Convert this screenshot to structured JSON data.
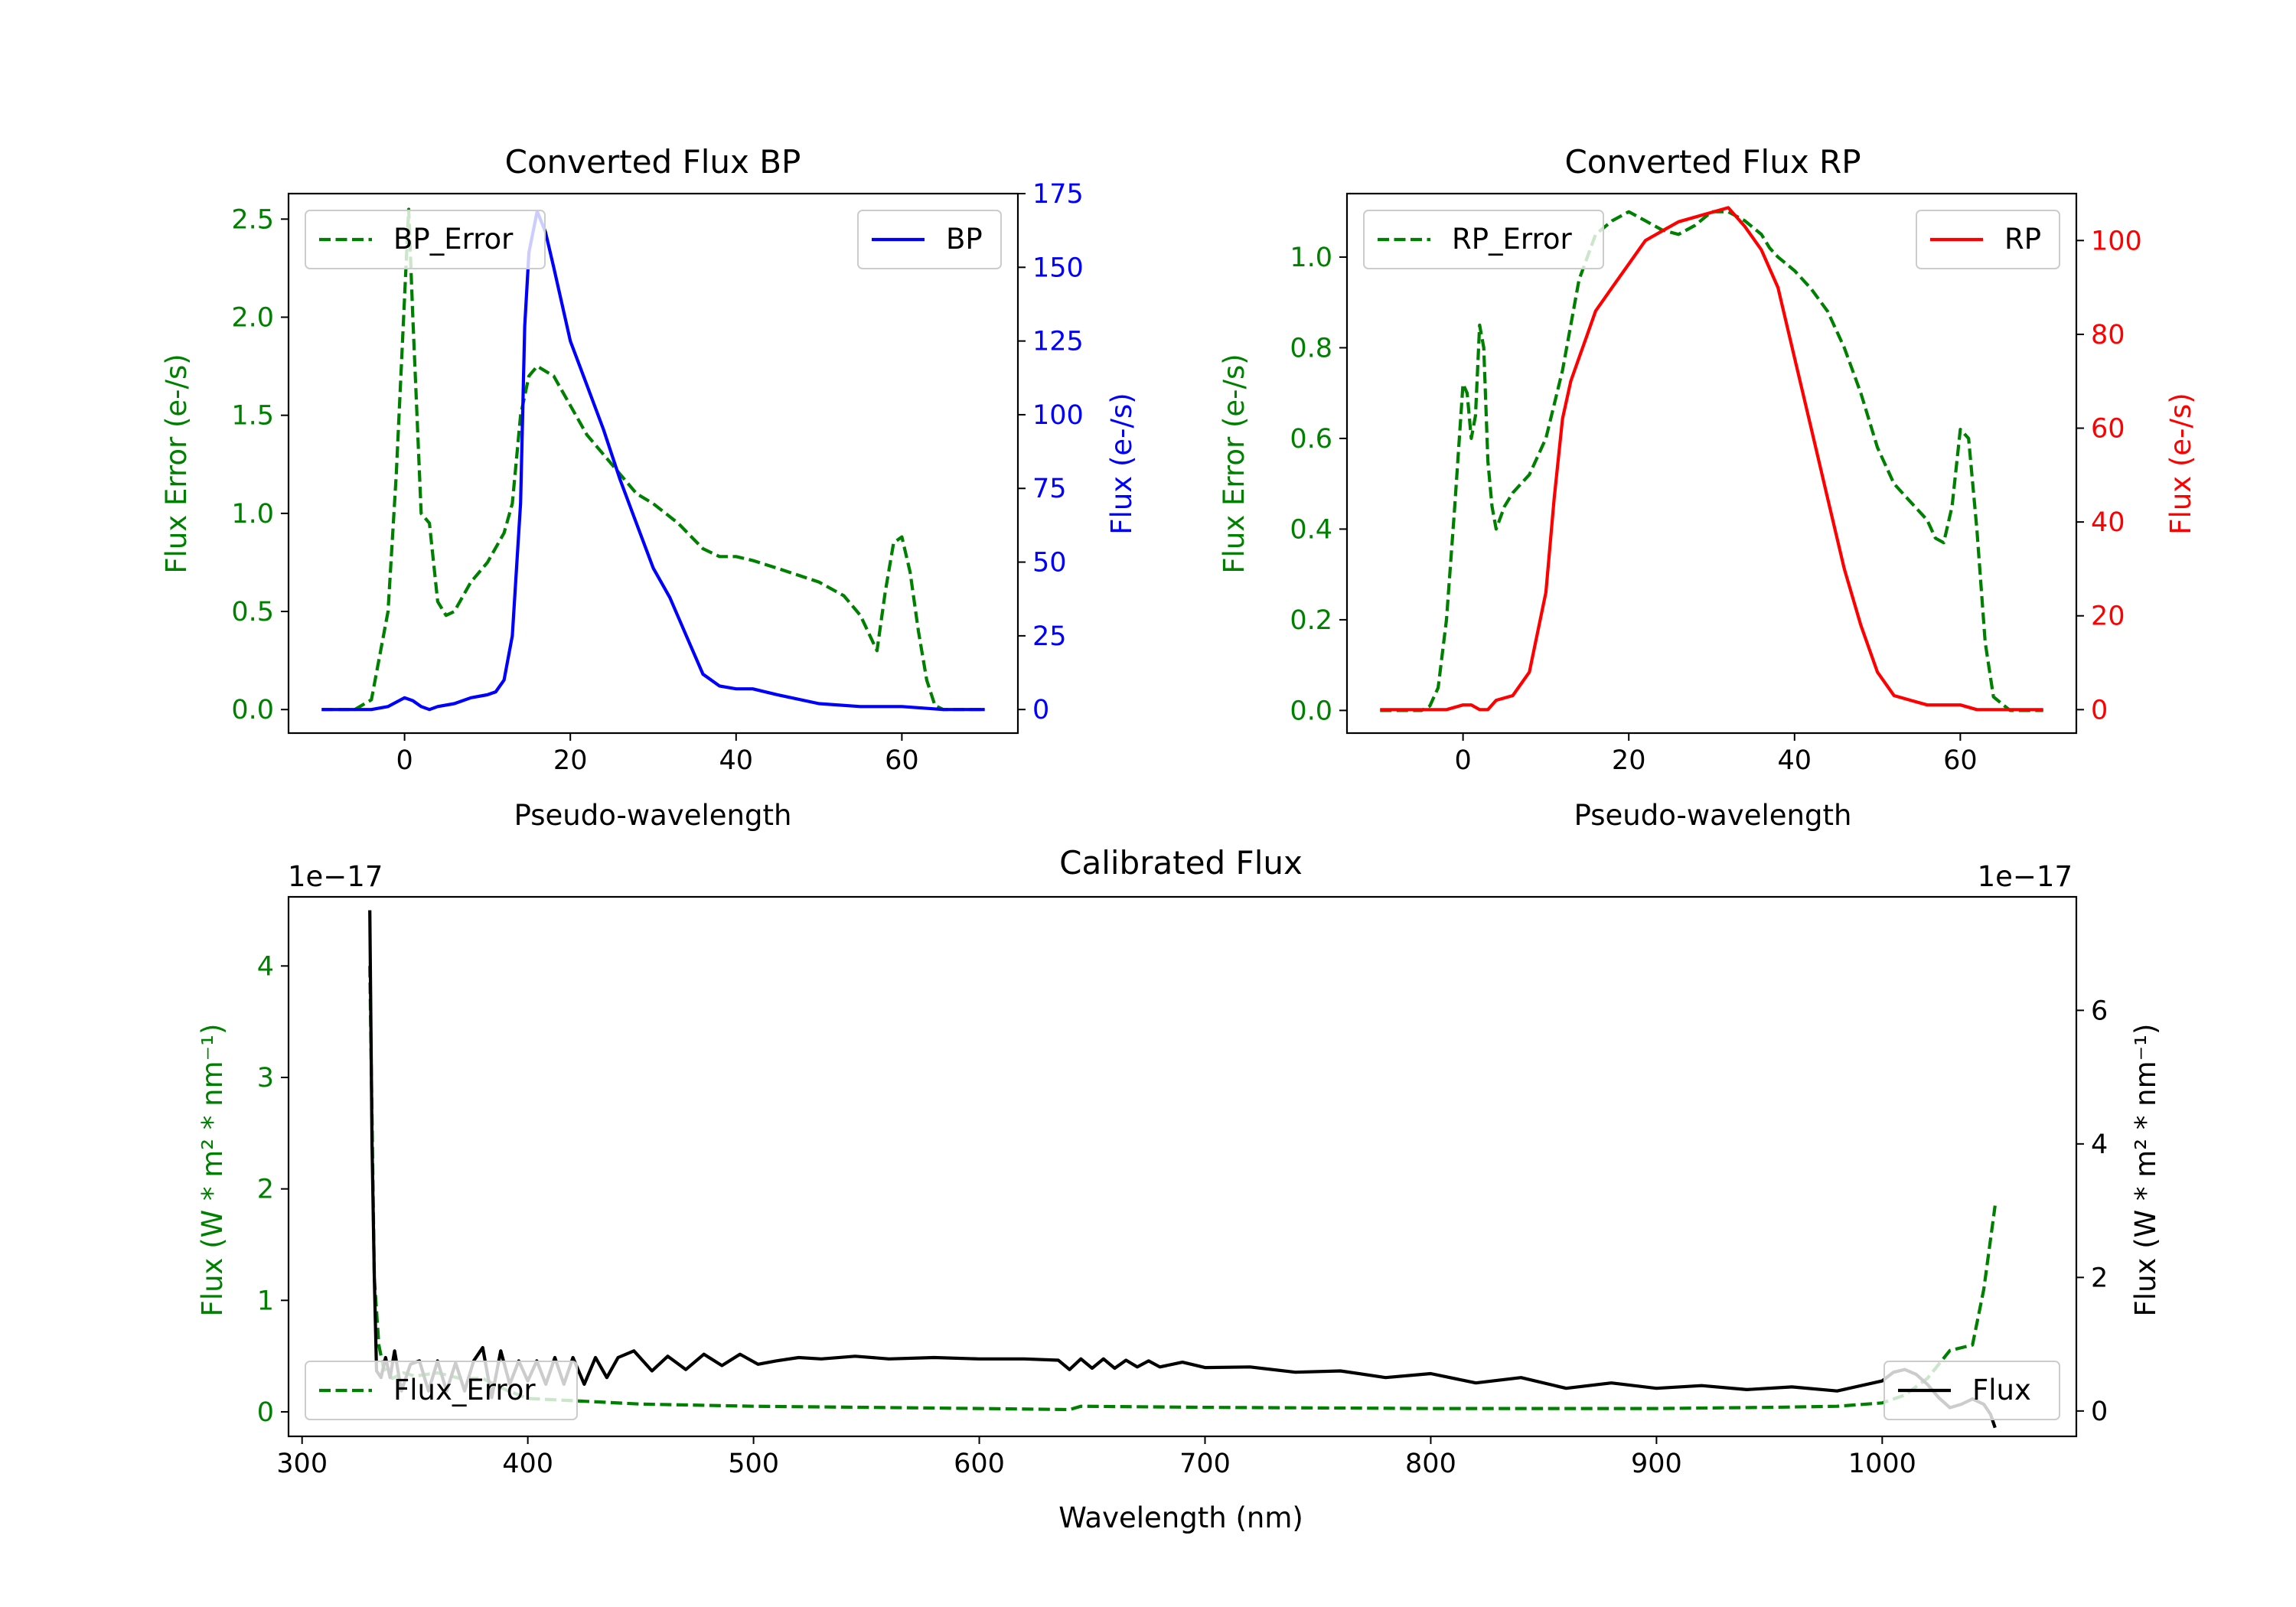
{
  "colors": {
    "bp": "#0000ff",
    "rp": "#ff0000",
    "error": "#008000",
    "flux": "#000000",
    "axis": "#000000",
    "background": "#ffffff"
  },
  "chart_data": [
    {
      "id": "bp",
      "type": "line",
      "title": "Converted Flux BP",
      "xlabel": "Pseudo-wavelength",
      "ylabel_left": "Flux Error (e-/s)",
      "ylabel_right": "Flux (e-/s)",
      "xlim": [
        -14,
        74
      ],
      "ylim_left": [
        -0.12,
        2.63
      ],
      "ylim_right": [
        -8,
        175
      ],
      "xticks": [
        0,
        20,
        40,
        60
      ],
      "yticks_left": [
        0.0,
        0.5,
        1.0,
        1.5,
        2.0,
        2.5
      ],
      "yticks_left_labels": [
        "0.0",
        "0.5",
        "1.0",
        "1.5",
        "2.0",
        "2.5"
      ],
      "yticks_right": [
        0,
        25,
        50,
        75,
        100,
        125,
        150,
        175
      ],
      "yticks_right_labels": [
        "0",
        "25",
        "50",
        "75",
        "100",
        "125",
        "150",
        "175"
      ],
      "legend_left": "top-left",
      "legend_right": "top-right",
      "series": [
        {
          "name": "BP_Error",
          "axis": "left",
          "style": "dashed",
          "color": "#008000",
          "x": [
            -10,
            -6,
            -4,
            -2,
            -1,
            0,
            0.5,
            1,
            2,
            3,
            4,
            5,
            6,
            8,
            10,
            12,
            13,
            14,
            15,
            16,
            18,
            20,
            22,
            25,
            28,
            30,
            33,
            36,
            38,
            40,
            42,
            45,
            50,
            53,
            55,
            57,
            58,
            59,
            60,
            61,
            62,
            63,
            64,
            65,
            68,
            70
          ],
          "y": [
            0.0,
            0.0,
            0.05,
            0.5,
            1.2,
            2.1,
            2.55,
            2.0,
            1.0,
            0.95,
            0.55,
            0.48,
            0.5,
            0.65,
            0.75,
            0.9,
            1.05,
            1.5,
            1.7,
            1.75,
            1.7,
            1.55,
            1.4,
            1.25,
            1.1,
            1.05,
            0.95,
            0.82,
            0.78,
            0.78,
            0.76,
            0.72,
            0.65,
            0.58,
            0.48,
            0.3,
            0.6,
            0.85,
            0.88,
            0.7,
            0.4,
            0.15,
            0.02,
            0.0,
            0.0,
            0.0
          ]
        },
        {
          "name": "BP",
          "axis": "right",
          "style": "solid",
          "color": "#0000ff",
          "x": [
            -10,
            -4,
            -2,
            0,
            1,
            2,
            3,
            4,
            6,
            8,
            10,
            11,
            12,
            13,
            14,
            14.5,
            15,
            16,
            17,
            18,
            20,
            22,
            24,
            26,
            28,
            30,
            32,
            34,
            36,
            38,
            40,
            42,
            45,
            50,
            55,
            60,
            65,
            70
          ],
          "y": [
            0,
            0,
            1,
            4,
            3,
            1,
            0,
            1,
            2,
            4,
            5,
            6,
            10,
            25,
            70,
            130,
            155,
            169,
            162,
            150,
            125,
            110,
            95,
            78,
            63,
            48,
            38,
            25,
            12,
            8,
            7,
            7,
            5,
            2,
            1,
            1,
            0,
            0
          ]
        }
      ]
    },
    {
      "id": "rp",
      "type": "line",
      "title": "Converted Flux RP",
      "xlabel": "Pseudo-wavelength",
      "ylabel_left": "Flux Error (e-/s)",
      "ylabel_right": "Flux (e-/s)",
      "xlim": [
        -14,
        74
      ],
      "ylim_left": [
        -0.05,
        1.14
      ],
      "ylim_right": [
        -5,
        110
      ],
      "xticks": [
        0,
        20,
        40,
        60
      ],
      "yticks_left": [
        0.0,
        0.2,
        0.4,
        0.6,
        0.8,
        1.0
      ],
      "yticks_left_labels": [
        "0.0",
        "0.2",
        "0.4",
        "0.6",
        "0.8",
        "1.0"
      ],
      "yticks_right": [
        0,
        20,
        40,
        60,
        80,
        100
      ],
      "yticks_right_labels": [
        "0",
        "20",
        "40",
        "60",
        "80",
        "100"
      ],
      "legend_left": "top-left",
      "legend_right": "top-right",
      "series": [
        {
          "name": "RP_Error",
          "axis": "left",
          "style": "dashed",
          "color": "#008000",
          "x": [
            -10,
            -5,
            -4,
            -3,
            -2,
            -1,
            0,
            0.5,
            1,
            1.5,
            2,
            2.5,
            3,
            3.5,
            4,
            5,
            6,
            8,
            10,
            12,
            14,
            16,
            18,
            20,
            22,
            24,
            26,
            28,
            30,
            32,
            34,
            36,
            37,
            38,
            40,
            42,
            44,
            46,
            48,
            50,
            52,
            54,
            56,
            57,
            58,
            59,
            60,
            61,
            62,
            63,
            64,
            66,
            70
          ],
          "y": [
            0.0,
            0.0,
            0.01,
            0.05,
            0.2,
            0.45,
            0.72,
            0.7,
            0.6,
            0.65,
            0.85,
            0.8,
            0.55,
            0.45,
            0.4,
            0.45,
            0.48,
            0.52,
            0.6,
            0.75,
            0.95,
            1.05,
            1.08,
            1.1,
            1.08,
            1.06,
            1.05,
            1.07,
            1.1,
            1.1,
            1.08,
            1.05,
            1.02,
            1.0,
            0.97,
            0.93,
            0.88,
            0.8,
            0.7,
            0.58,
            0.5,
            0.46,
            0.42,
            0.38,
            0.37,
            0.45,
            0.62,
            0.6,
            0.4,
            0.15,
            0.03,
            0.0,
            0.0
          ]
        },
        {
          "name": "RP",
          "axis": "right",
          "style": "solid",
          "color": "#ff0000",
          "x": [
            -10,
            -4,
            -2,
            0,
            1,
            2,
            3,
            4,
            6,
            8,
            10,
            11,
            12,
            13,
            14,
            15,
            16,
            18,
            20,
            22,
            24,
            26,
            28,
            30,
            32,
            34,
            36,
            38,
            40,
            42,
            44,
            46,
            48,
            50,
            52,
            54,
            56,
            58,
            60,
            62,
            64,
            66,
            70
          ],
          "y": [
            0,
            0,
            0,
            1,
            1,
            0,
            0,
            2,
            3,
            8,
            25,
            45,
            62,
            70,
            75,
            80,
            85,
            90,
            95,
            100,
            102,
            104,
            105,
            106,
            107,
            103,
            98,
            90,
            75,
            60,
            45,
            30,
            18,
            8,
            3,
            2,
            1,
            1,
            1,
            0,
            0,
            0,
            0
          ]
        }
      ]
    },
    {
      "id": "calibrated",
      "type": "line",
      "title": "Calibrated Flux",
      "xlabel": "Wavelength (nm)",
      "ylabel_left": "Flux (W * m² * nm⁻¹)",
      "ylabel_right": "Flux (W * m² * nm⁻¹)",
      "offset_left": "1e−17",
      "offset_right": "1e−17",
      "xlim": [
        294,
        1086
      ],
      "ylim_left": [
        -0.22,
        4.62
      ],
      "ylim_right": [
        -0.38,
        7.7
      ],
      "xticks": [
        300,
        400,
        500,
        600,
        700,
        800,
        900,
        1000
      ],
      "yticks_left": [
        0,
        1,
        2,
        3,
        4
      ],
      "yticks_left_labels": [
        "0",
        "1",
        "2",
        "3",
        "4"
      ],
      "yticks_right": [
        0,
        2,
        4,
        6
      ],
      "yticks_right_labels": [
        "0",
        "2",
        "4",
        "6"
      ],
      "legend_left": "bottom-left",
      "legend_right": "bottom-right",
      "series": [
        {
          "name": "Flux_Error",
          "axis": "left",
          "style": "dashed",
          "color": "#008000",
          "x": [
            330,
            332,
            334,
            336,
            340,
            345,
            350,
            360,
            370,
            380,
            390,
            400,
            420,
            450,
            500,
            550,
            600,
            640,
            645,
            700,
            800,
            900,
            950,
            980,
            1000,
            1010,
            1020,
            1030,
            1040,
            1045,
            1050
          ],
          "y": [
            4.0,
            1.2,
            0.6,
            0.4,
            0.3,
            0.35,
            0.32,
            0.35,
            0.3,
            0.3,
            0.2,
            0.12,
            0.1,
            0.07,
            0.05,
            0.04,
            0.03,
            0.02,
            0.05,
            0.04,
            0.03,
            0.03,
            0.04,
            0.05,
            0.08,
            0.15,
            0.3,
            0.55,
            0.6,
            1.1,
            1.85
          ]
        },
        {
          "name": "Flux",
          "axis": "right",
          "style": "solid",
          "color": "#000000",
          "x": [
            330,
            331,
            332,
            333,
            335,
            337,
            339,
            341,
            344,
            348,
            352,
            356,
            360,
            364,
            368,
            372,
            376,
            380,
            384,
            388,
            392,
            396,
            400,
            404,
            408,
            412,
            416,
            420,
            425,
            430,
            435,
            440,
            447,
            455,
            462,
            470,
            478,
            486,
            494,
            502,
            510,
            520,
            530,
            545,
            560,
            580,
            600,
            620,
            635,
            640,
            645,
            650,
            655,
            660,
            665,
            670,
            675,
            680,
            690,
            700,
            720,
            740,
            760,
            780,
            800,
            820,
            840,
            860,
            880,
            900,
            920,
            940,
            960,
            980,
            1000,
            1005,
            1010,
            1015,
            1020,
            1025,
            1030,
            1035,
            1040,
            1045,
            1048,
            1050
          ],
          "y": [
            7.5,
            4.0,
            2.0,
            0.6,
            0.5,
            0.8,
            0.5,
            0.9,
            0.3,
            0.7,
            0.75,
            0.3,
            0.75,
            0.3,
            0.72,
            0.3,
            0.75,
            0.95,
            0.2,
            0.9,
            0.4,
            0.75,
            0.45,
            0.75,
            0.4,
            0.8,
            0.4,
            0.8,
            0.4,
            0.8,
            0.5,
            0.8,
            0.9,
            0.6,
            0.82,
            0.62,
            0.85,
            0.68,
            0.85,
            0.7,
            0.75,
            0.8,
            0.78,
            0.82,
            0.78,
            0.8,
            0.78,
            0.78,
            0.76,
            0.62,
            0.78,
            0.64,
            0.78,
            0.64,
            0.76,
            0.66,
            0.75,
            0.66,
            0.73,
            0.65,
            0.66,
            0.58,
            0.6,
            0.5,
            0.56,
            0.42,
            0.5,
            0.34,
            0.42,
            0.34,
            0.38,
            0.32,
            0.36,
            0.3,
            0.45,
            0.58,
            0.62,
            0.55,
            0.4,
            0.2,
            0.05,
            0.1,
            0.18,
            0.1,
            -0.05,
            -0.25
          ]
        }
      ]
    }
  ]
}
